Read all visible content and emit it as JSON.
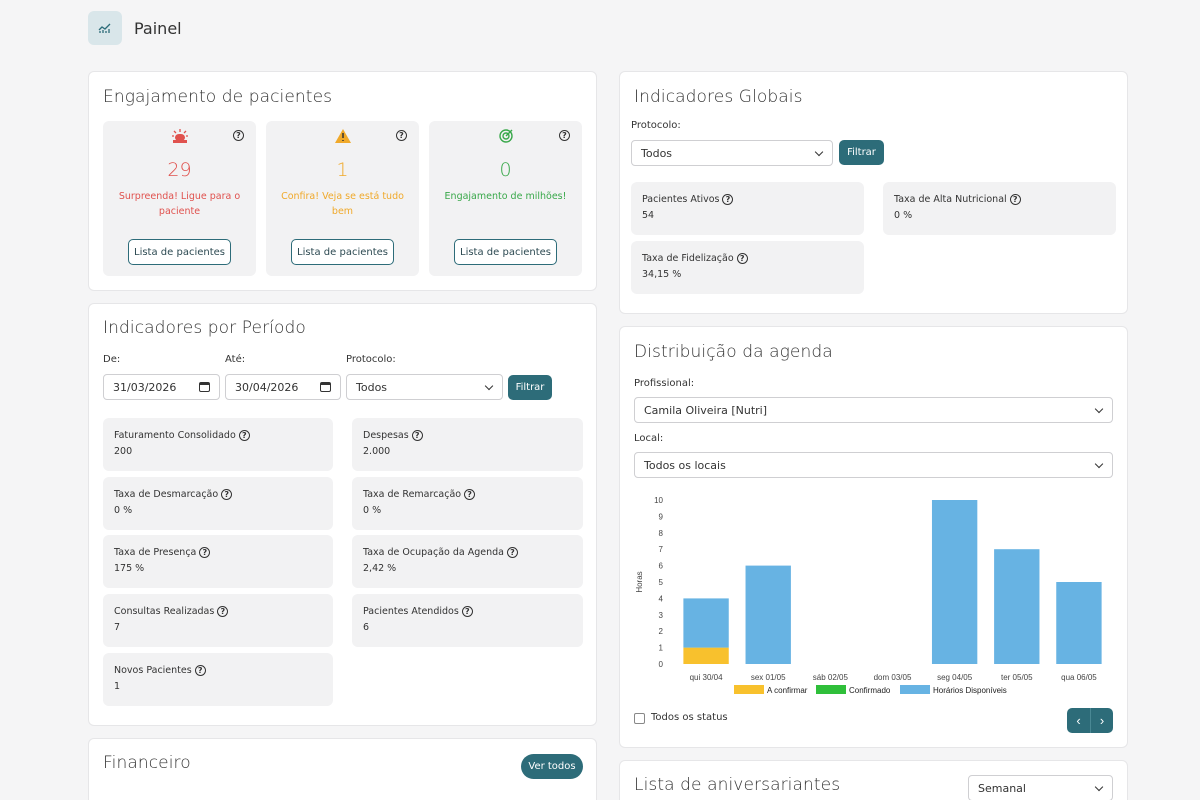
{
  "header": {
    "title": "Painel",
    "icon": "chart-icon"
  },
  "engagement": {
    "title": "Engajamento de pacientes",
    "boxes": [
      {
        "icon": "alarm-icon",
        "count": "29",
        "message": "Surpreenda! Ligue para o paciente",
        "button": "Lista de pacientes",
        "color": "#e0524e"
      },
      {
        "icon": "warning-icon",
        "count": "1",
        "message": "Confira! Veja se está tudo bem",
        "button": "Lista de pacientes",
        "color": "#f0a92a"
      },
      {
        "icon": "target-icon",
        "count": "0",
        "message": "Engajamento de milhões!",
        "button": "Lista de pacientes",
        "color": "#39a84a"
      }
    ]
  },
  "period": {
    "title": "Indicadores por Período",
    "from_label": "De:",
    "from_value": "31/03/2026",
    "to_label": "Até:",
    "to_value": "30/04/2026",
    "protocol_label": "Protocolo:",
    "protocol_value": "Todos",
    "filter_button": "Filtrar",
    "metrics": [
      {
        "label": "Faturamento Consolidado",
        "value": "200"
      },
      {
        "label": "Despesas",
        "value": "2.000"
      },
      {
        "label": "Taxa de Desmarcação",
        "value": "0 %"
      },
      {
        "label": "Taxa de Remarcação",
        "value": "0 %"
      },
      {
        "label": "Taxa de Presença",
        "value": "175 %"
      },
      {
        "label": "Taxa de Ocupação da Agenda",
        "value": "2,42 %"
      },
      {
        "label": "Consultas Realizadas",
        "value": "7"
      },
      {
        "label": "Pacientes Atendidos",
        "value": "6"
      },
      {
        "label": "Novos Pacientes",
        "value": "1"
      }
    ]
  },
  "financial": {
    "title": "Financeiro",
    "button": "Ver todos"
  },
  "global": {
    "title": "Indicadores Globais",
    "protocol_label": "Protocolo:",
    "protocol_value": "Todos",
    "filter_button": "Filtrar",
    "metrics": [
      {
        "label": "Pacientes Ativos",
        "value": "54"
      },
      {
        "label": "Taxa de Alta Nutricional",
        "value": "0 %"
      },
      {
        "label": "Taxa de Fidelização",
        "value": "34,15 %"
      }
    ]
  },
  "agenda": {
    "title": "Distribuição da agenda",
    "professional_label": "Profissional:",
    "professional_value": "Camila Oliveira [Nutri]",
    "location_label": "Local:",
    "location_value": "Todos os locais",
    "status_checkbox_label": "Todos os status",
    "prev_icon": "chevron-left-icon",
    "next_icon": "chevron-right-icon"
  },
  "birthdays": {
    "title": "Lista de aniversariantes",
    "period_value": "Semanal"
  },
  "colors": {
    "accent": "#2d6c79",
    "a_confirmar": "#f8c12d",
    "confirmado": "#2fbf3a",
    "disponiveis": "#67b3e3"
  },
  "chart_data": {
    "type": "bar",
    "stacked": true,
    "categories": [
      "qui 30/04",
      "sex 01/05",
      "sáb 02/05",
      "dom 03/05",
      "seg 04/05",
      "ter 05/05",
      "qua 06/05"
    ],
    "category_labels_visible": [
      "qui 30/04",
      "sex 01/05",
      "sáb 02/05",
      "dom 03/05",
      "seg 04/05",
      "ter 05/05",
      "qua 06/05"
    ],
    "series": [
      {
        "name": "A confirmar",
        "color": "#f8c12d",
        "values": [
          1,
          0,
          0,
          0,
          0,
          0,
          0
        ]
      },
      {
        "name": "Confirmado",
        "color": "#2fbf3a",
        "values": [
          0,
          0,
          0,
          0,
          0,
          0,
          0
        ]
      },
      {
        "name": "Horários Disponíveis",
        "color": "#67b3e3",
        "values": [
          3,
          6,
          0,
          0,
          10,
          7,
          5
        ]
      }
    ],
    "ylabel": "Horas",
    "ylim": [
      0,
      10
    ],
    "yticks": [
      "0",
      "1",
      "2",
      "3",
      "4",
      "5",
      "6",
      "7",
      "8",
      "9",
      "10"
    ],
    "grid": false,
    "legend": "bottom"
  }
}
